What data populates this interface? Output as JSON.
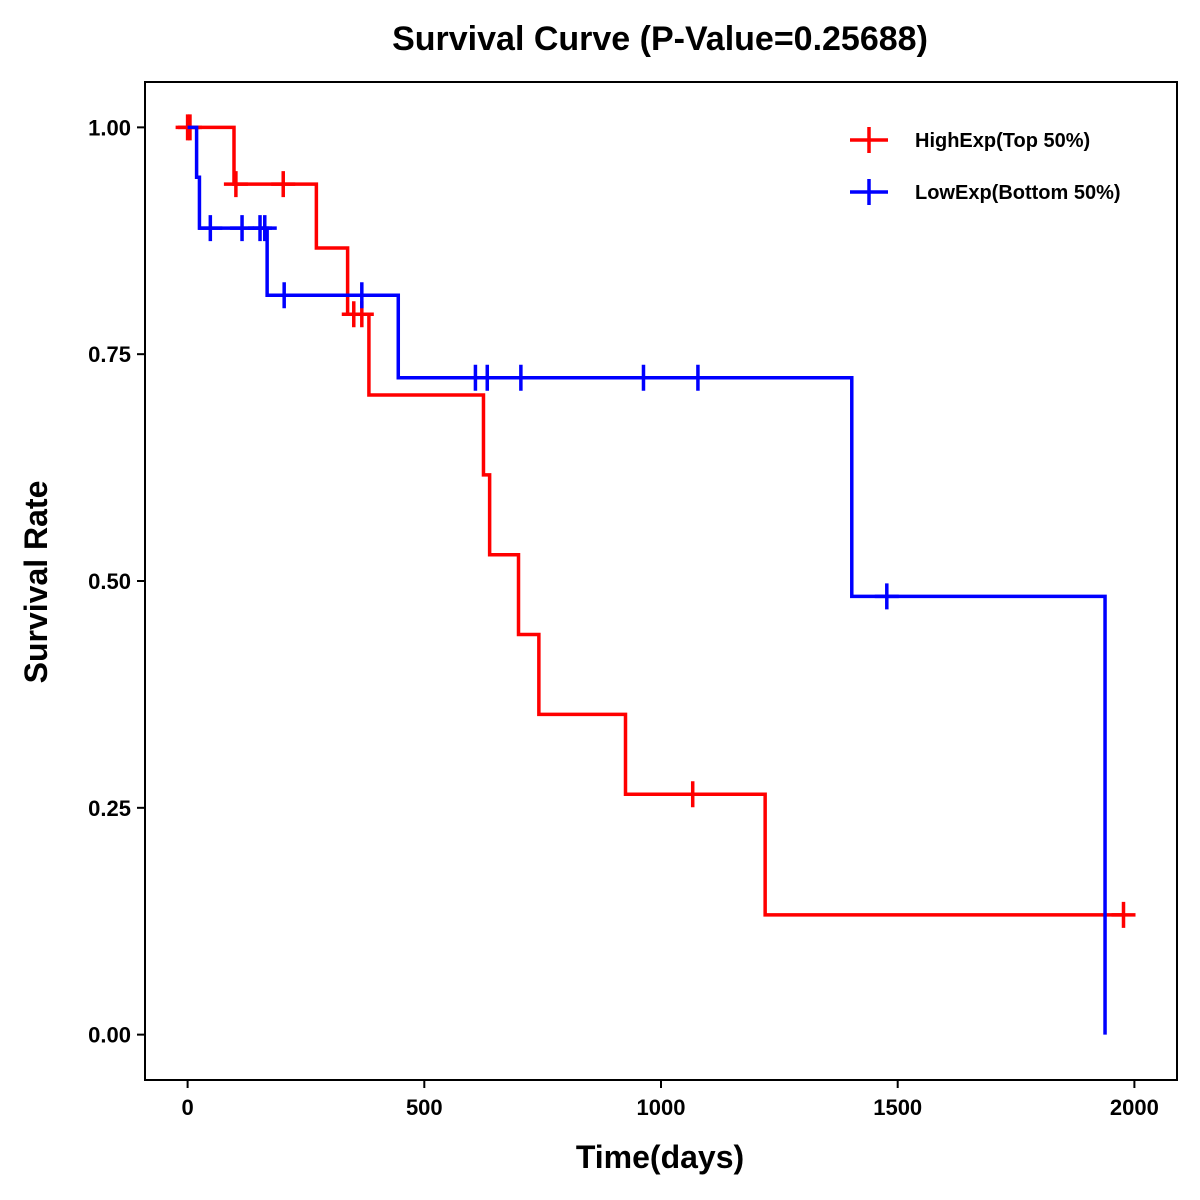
{
  "chart_data": {
    "type": "line",
    "title": "Survival Curve (P-Value=0.25688)",
    "xlabel": "Time(days)",
    "ylabel": "Survival Rate",
    "xlim": [
      -90,
      2090
    ],
    "ylim": [
      -0.05,
      1.05
    ],
    "xticks": [
      0,
      500,
      1000,
      1500,
      2000
    ],
    "xtick_labels": [
      "0",
      "500",
      "1000",
      "1500",
      "2000"
    ],
    "yticks": [
      0,
      0.25,
      0.5,
      0.75,
      1.0
    ],
    "ytick_labels": [
      "0.00",
      "0.25",
      "0.50",
      "0.75",
      "1.00"
    ],
    "grid": false,
    "legend_position": "top-right",
    "series": [
      {
        "name": "HighExp(Top 50%)",
        "color": "#ff0000",
        "steps": [
          [
            0,
            1.0
          ],
          [
            98,
            0.9375
          ],
          [
            272,
            0.867
          ],
          [
            338,
            0.794
          ],
          [
            383,
            0.705
          ],
          [
            625,
            0.617
          ],
          [
            638,
            0.529
          ],
          [
            699,
            0.441
          ],
          [
            742,
            0.353
          ],
          [
            925,
            0.265
          ],
          [
            1220,
            0.132
          ]
        ],
        "end_time": 1977,
        "censored": [
          [
            0,
            1.0
          ],
          [
            5,
            1.0
          ],
          [
            102,
            0.9375
          ],
          [
            202,
            0.9375
          ],
          [
            351,
            0.794
          ],
          [
            368,
            0.794
          ],
          [
            1067,
            0.265
          ],
          [
            1977,
            0.132
          ]
        ]
      },
      {
        "name": "LowExp(Bottom 50%)",
        "color": "#0000ff",
        "steps": [
          [
            0,
            1.0
          ],
          [
            19,
            0.945
          ],
          [
            25,
            0.889
          ],
          [
            168,
            0.815
          ],
          [
            445,
            0.724
          ],
          [
            1403,
            0.483
          ],
          [
            1938,
            0.0
          ]
        ],
        "end_time": 1938,
        "censored": [
          [
            48,
            0.889
          ],
          [
            115,
            0.889
          ],
          [
            153,
            0.889
          ],
          [
            163,
            0.889
          ],
          [
            204,
            0.815
          ],
          [
            368,
            0.815
          ],
          [
            608,
            0.724
          ],
          [
            633,
            0.724
          ],
          [
            704,
            0.724
          ],
          [
            963,
            0.724
          ],
          [
            1078,
            0.724
          ],
          [
            1477,
            0.483
          ]
        ]
      }
    ]
  }
}
